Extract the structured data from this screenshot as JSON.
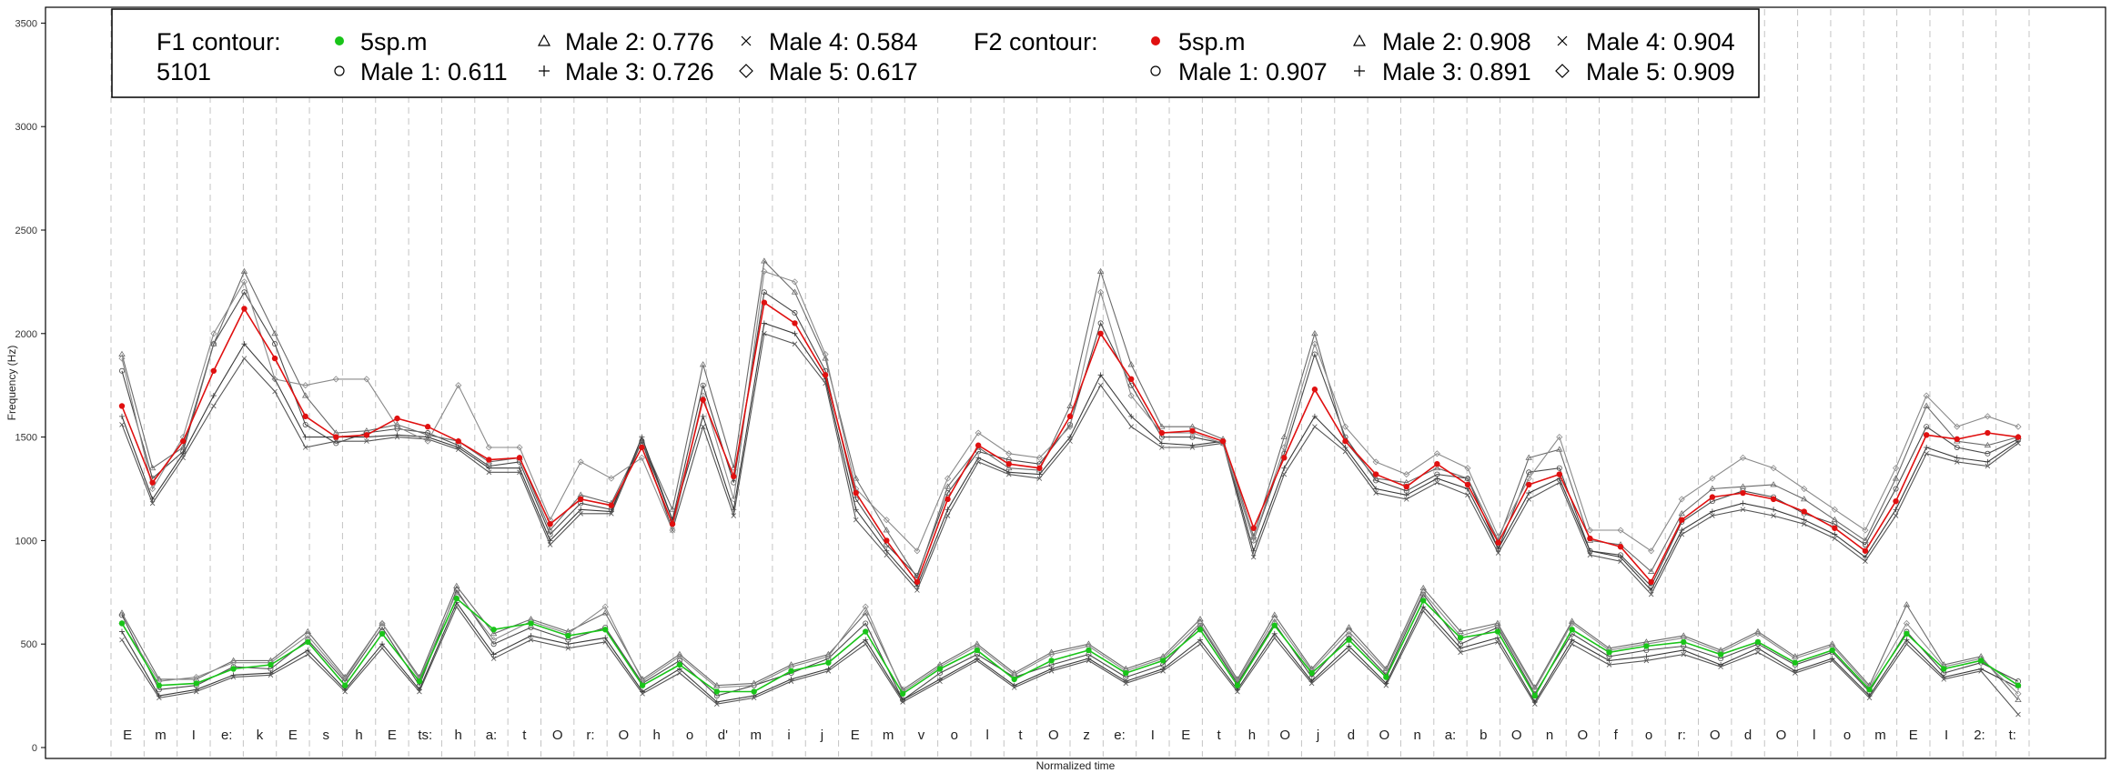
{
  "chart_data": {
    "type": "line",
    "xlabel": "Normalized time",
    "ylabel": "Frequency (Hz)",
    "ylim": [
      0,
      3600
    ],
    "yticks": [
      0,
      500,
      1000,
      1500,
      2000,
      2500,
      3000,
      3500
    ],
    "grid": "vertical dashed segment boundaries",
    "legend_position": "top-left",
    "segments": [
      "E",
      "m",
      "I",
      "e:",
      "k",
      "E",
      "s",
      "h",
      "E",
      "ts:",
      "h",
      "a:",
      "t",
      "O",
      "r:",
      "O",
      "h",
      "o",
      "d'",
      "m",
      "i",
      "j",
      "E",
      "m",
      "v",
      "o",
      "l",
      "t",
      "O",
      "z",
      "e:",
      "I",
      "E",
      "t",
      "h",
      "O",
      "j",
      "d",
      "O",
      "n",
      "a:",
      "b",
      "O",
      "n",
      "O",
      "f",
      "o",
      "r:",
      "O",
      "d",
      "O",
      "l",
      "o",
      "m",
      "E",
      "I",
      "2:",
      "t:"
    ],
    "legend": {
      "f1": {
        "heading_line1": "F1 contour:",
        "heading_line2": "5101",
        "entries": [
          {
            "marker": "filled-circle",
            "color": "#19c419",
            "label": "5sp.m"
          },
          {
            "marker": "circle",
            "label": "Male 1: 0.611"
          },
          {
            "marker": "triangle",
            "label": "Male 2: 0.776"
          },
          {
            "marker": "plus",
            "label": "Male 3: 0.726"
          },
          {
            "marker": "cross",
            "label": "Male 4: 0.584"
          },
          {
            "marker": "diamond",
            "label": "Male 5: 0.617"
          }
        ]
      },
      "f2": {
        "heading_line1": "F2 contour:",
        "entries": [
          {
            "marker": "filled-circle",
            "color": "#e01010",
            "label": "5sp.m"
          },
          {
            "marker": "circle",
            "label": "Male 1: 0.907"
          },
          {
            "marker": "triangle",
            "label": "Male 2: 0.908"
          },
          {
            "marker": "plus",
            "label": "Male 3: 0.891"
          },
          {
            "marker": "cross",
            "label": "Male 4: 0.904"
          },
          {
            "marker": "diamond",
            "label": "Male 5: 0.909"
          }
        ]
      }
    },
    "series": [
      {
        "name": "5sp.m",
        "formant": "F2",
        "color": "#e01010",
        "values": [
          1650,
          1280,
          1480,
          1820,
          2120,
          1880,
          1600,
          1500,
          1510,
          1590,
          1550,
          1480,
          1390,
          1400,
          1080,
          1200,
          1170,
          1450,
          1080,
          1680,
          1310,
          2150,
          2050,
          1800,
          1230,
          1000,
          800,
          1200,
          1460,
          1370,
          1350,
          1600,
          2000,
          1780,
          1520,
          1530,
          1480,
          1060,
          1400,
          1730,
          1480,
          1320,
          1260,
          1370,
          1270,
          990,
          1270,
          1320,
          1010,
          970,
          800,
          1100,
          1210,
          1230,
          1200,
          1140,
          1060,
          950,
          1190,
          1510,
          1490,
          1520,
          1500
        ]
      },
      {
        "name": "Male 1",
        "formant": "F2",
        "color": "#4a4a4a",
        "values": [
          1820,
          1300,
          1430,
          1950,
          2200,
          1950,
          1560,
          1470,
          1520,
          1540,
          1520,
          1460,
          1360,
          1380,
          1030,
          1180,
          1150,
          1480,
          1100,
          1750,
          1280,
          2200,
          2100,
          1820,
          1200,
          980,
          830,
          1230,
          1430,
          1390,
          1370,
          1560,
          2050,
          1750,
          1500,
          1500,
          1470,
          1000,
          1420,
          1900,
          1500,
          1290,
          1240,
          1320,
          1300,
          960,
          1330,
          1350,
          950,
          930,
          780,
          1090,
          1190,
          1240,
          1210,
          1130,
          1080,
          980,
          1250,
          1550,
          1450,
          1420,
          1490
        ]
      },
      {
        "name": "Male 2",
        "formant": "F2",
        "color": "#6a6a6a",
        "values": [
          1900,
          1350,
          1450,
          1950,
          2300,
          2000,
          1700,
          1520,
          1530,
          1560,
          1510,
          1480,
          1380,
          1400,
          1050,
          1220,
          1180,
          1480,
          1150,
          1850,
          1350,
          2350,
          2200,
          1880,
          1300,
          1050,
          820,
          1260,
          1450,
          1350,
          1340,
          1650,
          2300,
          1850,
          1550,
          1550,
          1490,
          1020,
          1500,
          2000,
          1480,
          1300,
          1280,
          1350,
          1300,
          1000,
          1400,
          1440,
          1000,
          980,
          850,
          1130,
          1250,
          1260,
          1270,
          1200,
          1100,
          1000,
          1300,
          1650,
          1480,
          1460,
          1500
        ]
      },
      {
        "name": "Male 3",
        "formant": "F2",
        "color": "#3a3a3a",
        "values": [
          1600,
          1200,
          1420,
          1700,
          1950,
          1780,
          1500,
          1500,
          1500,
          1510,
          1500,
          1450,
          1350,
          1350,
          1000,
          1150,
          1140,
          1500,
          1100,
          1600,
          1150,
          2050,
          2000,
          1780,
          1150,
          950,
          780,
          1150,
          1400,
          1330,
          1320,
          1500,
          1800,
          1600,
          1470,
          1460,
          1480,
          950,
          1350,
          1600,
          1450,
          1250,
          1220,
          1300,
          1250,
          960,
          1230,
          1300,
          950,
          920,
          760,
          1050,
          1140,
          1180,
          1150,
          1100,
          1030,
          920,
          1150,
          1450,
          1400,
          1380,
          1480
        ]
      },
      {
        "name": "Male 4",
        "formant": "F2",
        "color": "#555555",
        "values": [
          1560,
          1180,
          1400,
          1650,
          1880,
          1720,
          1450,
          1480,
          1480,
          1500,
          1490,
          1440,
          1330,
          1330,
          980,
          1130,
          1130,
          1480,
          1050,
          1550,
          1120,
          2000,
          1950,
          1760,
          1100,
          930,
          760,
          1120,
          1380,
          1320,
          1300,
          1480,
          1750,
          1550,
          1450,
          1450,
          1470,
          920,
          1320,
          1550,
          1430,
          1230,
          1200,
          1280,
          1220,
          940,
          1200,
          1280,
          930,
          900,
          740,
          1030,
          1120,
          1150,
          1120,
          1080,
          1010,
          900,
          1120,
          1420,
          1380,
          1360,
          1470
        ]
      },
      {
        "name": "Male 5",
        "formant": "F2",
        "color": "#8a8a8a",
        "values": [
          1880,
          1250,
          1500,
          2000,
          2250,
          1780,
          1750,
          1780,
          1780,
          1550,
          1480,
          1750,
          1450,
          1450,
          1100,
          1380,
          1300,
          1400,
          1050,
          1700,
          1200,
          2300,
          2250,
          1900,
          1250,
          1100,
          950,
          1300,
          1520,
          1420,
          1400,
          1550,
          2200,
          1700,
          1520,
          1520,
          1470,
          1000,
          1450,
          1950,
          1550,
          1380,
          1320,
          1420,
          1350,
          1020,
          1300,
          1500,
          1050,
          1050,
          950,
          1200,
          1300,
          1400,
          1350,
          1250,
          1150,
          1050,
          1350,
          1700,
          1550,
          1600,
          1550
        ]
      },
      {
        "name": "5sp.m",
        "formant": "F1",
        "color": "#19c419",
        "values": [
          600,
          300,
          310,
          380,
          400,
          510,
          300,
          550,
          320,
          720,
          570,
          600,
          540,
          570,
          300,
          400,
          270,
          270,
          370,
          410,
          560,
          260,
          380,
          470,
          330,
          420,
          470,
          360,
          420,
          570,
          300,
          590,
          360,
          520,
          340,
          710,
          530,
          560,
          250,
          570,
          460,
          490,
          510,
          450,
          510,
          410,
          470,
          280,
          550,
          380,
          420,
          300
        ]
      },
      {
        "name": "Male 1",
        "formant": "F1",
        "color": "#4a4a4a",
        "values": [
          640,
          280,
          300,
          390,
          380,
          520,
          320,
          580,
          300,
          760,
          500,
          580,
          520,
          580,
          310,
          420,
          250,
          300,
          360,
          430,
          600,
          230,
          360,
          450,
          340,
          400,
          450,
          340,
          400,
          590,
          310,
          600,
          340,
          540,
          350,
          740,
          500,
          580,
          260,
          550,
          440,
          470,
          490,
          430,
          500,
          400,
          460,
          270,
          560,
          360,
          410,
          320
        ]
      },
      {
        "name": "Male 2",
        "formant": "F1",
        "color": "#6a6a6a",
        "values": [
          650,
          330,
          330,
          420,
          420,
          560,
          340,
          600,
          340,
          780,
          550,
          620,
          560,
          650,
          330,
          450,
          300,
          310,
          400,
          450,
          650,
          280,
          400,
          500,
          360,
          460,
          500,
          380,
          440,
          620,
          330,
          640,
          380,
          580,
          380,
          770,
          560,
          600,
          290,
          610,
          480,
          510,
          540,
          470,
          560,
          440,
          500,
          300,
          690,
          400,
          440,
          230
        ]
      },
      {
        "name": "Male 3",
        "formant": "F1",
        "color": "#3a3a3a",
        "values": [
          560,
          250,
          280,
          350,
          360,
          470,
          280,
          500,
          280,
          700,
          450,
          540,
          500,
          530,
          270,
          380,
          220,
          250,
          330,
          380,
          520,
          230,
          330,
          430,
          300,
          380,
          430,
          320,
          380,
          520,
          280,
          550,
          320,
          490,
          310,
          680,
          480,
          530,
          220,
          520,
          420,
          440,
          470,
          400,
          480,
          370,
          430,
          250,
          520,
          340,
          380,
          290
        ]
      },
      {
        "name": "Male 4",
        "formant": "F1",
        "color": "#555555",
        "values": [
          520,
          240,
          270,
          340,
          350,
          450,
          270,
          480,
          270,
          680,
          430,
          520,
          480,
          510,
          260,
          360,
          210,
          240,
          320,
          370,
          500,
          220,
          320,
          420,
          290,
          370,
          420,
          310,
          370,
          500,
          270,
          530,
          310,
          470,
          300,
          660,
          460,
          510,
          210,
          500,
          400,
          420,
          450,
          390,
          460,
          360,
          420,
          240,
          500,
          330,
          370,
          160
        ]
      },
      {
        "name": "Male 5",
        "formant": "F1",
        "color": "#8a8a8a",
        "values": [
          600,
          320,
          340,
          410,
          410,
          540,
          330,
          600,
          330,
          750,
          520,
          610,
          550,
          680,
          320,
          440,
          290,
          300,
          390,
          440,
          680,
          270,
          390,
          490,
          350,
          450,
          490,
          370,
          430,
          600,
          320,
          620,
          370,
          560,
          370,
          750,
          540,
          590,
          280,
          600,
          470,
          500,
          530,
          460,
          550,
          430,
          490,
          290,
          600,
          390,
          430,
          260
        ]
      }
    ]
  }
}
